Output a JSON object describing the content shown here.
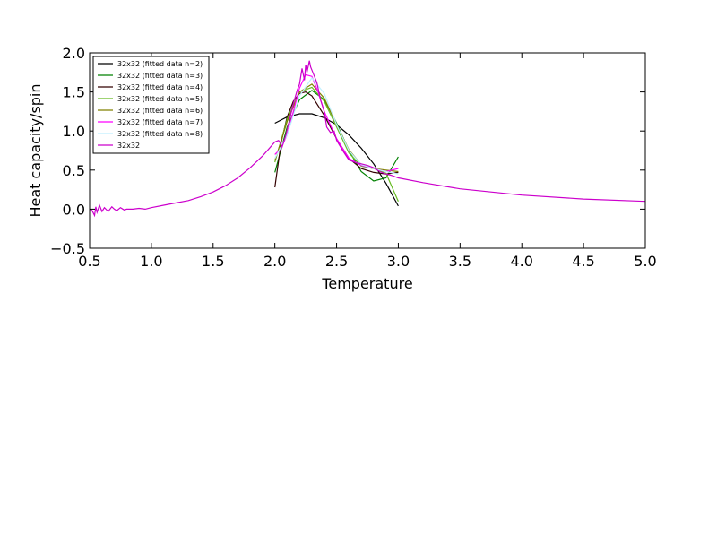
{
  "chart_data": {
    "type": "line",
    "title": "",
    "xlabel": "Temperature",
    "ylabel": "Heat capacity/spin",
    "xlim": [
      0.5,
      5.0
    ],
    "ylim": [
      -0.5,
      2.0
    ],
    "xticks": [
      0.5,
      1.0,
      1.5,
      2.0,
      2.5,
      3.0,
      3.5,
      4.0,
      4.5,
      5.0
    ],
    "yticks": [
      -0.5,
      0.0,
      0.5,
      1.0,
      1.5,
      2.0
    ],
    "xtick_labels": [
      "0.5",
      "1.0",
      "1.5",
      "2.0",
      "2.5",
      "3.0",
      "3.5",
      "4.0",
      "4.5",
      "5.0"
    ],
    "ytick_labels": [
      "−0.5",
      "0.0",
      "0.5",
      "1.0",
      "1.5",
      "2.0"
    ],
    "grid": false,
    "legend_position": "top-left",
    "series": [
      {
        "name": "32x32 (fitted data n=2)",
        "color": "#000000",
        "x": [
          2.0,
          2.1,
          2.2,
          2.3,
          2.4,
          2.5,
          2.6,
          2.7,
          2.8,
          2.9,
          3.0
        ],
        "y": [
          1.1,
          1.18,
          1.22,
          1.22,
          1.17,
          1.08,
          0.95,
          0.78,
          0.58,
          0.33,
          0.04
        ]
      },
      {
        "name": "32x32 (fitted data n=3)",
        "color": "#008000",
        "x": [
          2.0,
          2.1,
          2.2,
          2.3,
          2.4,
          2.5,
          2.6,
          2.7,
          2.8,
          2.9,
          3.0
        ],
        "y": [
          0.47,
          1.05,
          1.4,
          1.52,
          1.4,
          1.1,
          0.75,
          0.48,
          0.36,
          0.4,
          0.67
        ]
      },
      {
        "name": "32x32 (fitted data n=4)",
        "color": "#330000",
        "x": [
          2.0,
          2.05,
          2.1,
          2.15,
          2.2,
          2.25,
          2.3,
          2.4,
          2.5,
          2.6,
          2.7,
          2.8,
          2.9,
          3.0
        ],
        "y": [
          0.28,
          0.85,
          1.18,
          1.38,
          1.48,
          1.5,
          1.45,
          1.2,
          0.9,
          0.65,
          0.52,
          0.47,
          0.45,
          0.47
        ]
      },
      {
        "name": "32x32 (fitted data n=5)",
        "color": "#66bb22",
        "x": [
          2.0,
          2.1,
          2.2,
          2.3,
          2.4,
          2.5,
          2.6,
          2.7,
          2.8,
          2.9,
          3.0
        ],
        "y": [
          0.6,
          1.15,
          1.5,
          1.56,
          1.38,
          1.05,
          0.72,
          0.55,
          0.52,
          0.46,
          0.1
        ]
      },
      {
        "name": "32x32 (fitted data n=6)",
        "color": "#808000",
        "x": [
          2.0,
          2.1,
          2.2,
          2.3,
          2.4,
          2.5,
          2.6,
          2.7,
          2.8,
          2.9,
          3.0
        ],
        "y": [
          0.62,
          1.12,
          1.5,
          1.6,
          1.42,
          1.08,
          0.76,
          0.57,
          0.52,
          0.5,
          0.48
        ]
      },
      {
        "name": "32x32 (fitted data n=7)",
        "color": "#ff00ff",
        "x": [
          2.0,
          2.05,
          2.1,
          2.15,
          2.2,
          2.25,
          2.3,
          2.35,
          2.4,
          2.5,
          2.6,
          2.7,
          2.8,
          2.9,
          3.0
        ],
        "y": [
          0.7,
          0.78,
          0.95,
          1.25,
          1.55,
          1.72,
          1.7,
          1.5,
          1.25,
          0.9,
          0.65,
          0.56,
          0.52,
          0.48,
          0.52
        ]
      },
      {
        "name": "32x32 (fitted data n=8)",
        "color": "#bfefff",
        "x": [
          2.0,
          2.1,
          2.2,
          2.3,
          2.4,
          2.5,
          2.6,
          2.7,
          2.8,
          2.9,
          3.0
        ],
        "y": [
          0.65,
          0.95,
          1.45,
          1.68,
          1.48,
          1.08,
          0.75,
          0.57,
          0.52,
          0.48,
          0.45
        ]
      },
      {
        "name": "32x32",
        "color": "#cc00cc",
        "x": [
          0.5,
          0.52,
          0.54,
          0.55,
          0.56,
          0.58,
          0.6,
          0.62,
          0.65,
          0.68,
          0.7,
          0.72,
          0.75,
          0.78,
          0.8,
          0.85,
          0.9,
          0.95,
          1.0,
          1.1,
          1.2,
          1.3,
          1.4,
          1.5,
          1.6,
          1.7,
          1.8,
          1.9,
          1.95,
          2.0,
          2.03,
          2.06,
          2.09,
          2.12,
          2.15,
          2.18,
          2.2,
          2.22,
          2.24,
          2.25,
          2.26,
          2.28,
          2.29,
          2.3,
          2.32,
          2.34,
          2.35,
          2.37,
          2.4,
          2.42,
          2.45,
          2.48,
          2.5,
          2.55,
          2.6,
          2.65,
          2.7,
          2.75,
          2.8,
          2.85,
          2.9,
          2.95,
          3.0,
          3.2,
          3.5,
          4.0,
          4.5,
          5.0
        ],
        "y": [
          0.0,
          -0.02,
          -0.08,
          0.03,
          -0.04,
          0.05,
          -0.03,
          0.02,
          -0.03,
          0.03,
          0.0,
          -0.02,
          0.02,
          -0.01,
          0.0,
          0.0,
          0.01,
          0.0,
          0.02,
          0.05,
          0.08,
          0.11,
          0.16,
          0.22,
          0.3,
          0.4,
          0.53,
          0.68,
          0.77,
          0.86,
          0.88,
          0.8,
          0.95,
          1.15,
          1.35,
          1.52,
          1.6,
          1.8,
          1.65,
          1.85,
          1.75,
          1.9,
          1.82,
          1.78,
          1.7,
          1.62,
          1.55,
          1.4,
          1.25,
          1.05,
          0.98,
          1.0,
          0.88,
          0.75,
          0.63,
          0.6,
          0.58,
          0.56,
          0.53,
          0.48,
          0.45,
          0.43,
          0.4,
          0.34,
          0.26,
          0.18,
          0.13,
          0.1
        ]
      }
    ]
  }
}
